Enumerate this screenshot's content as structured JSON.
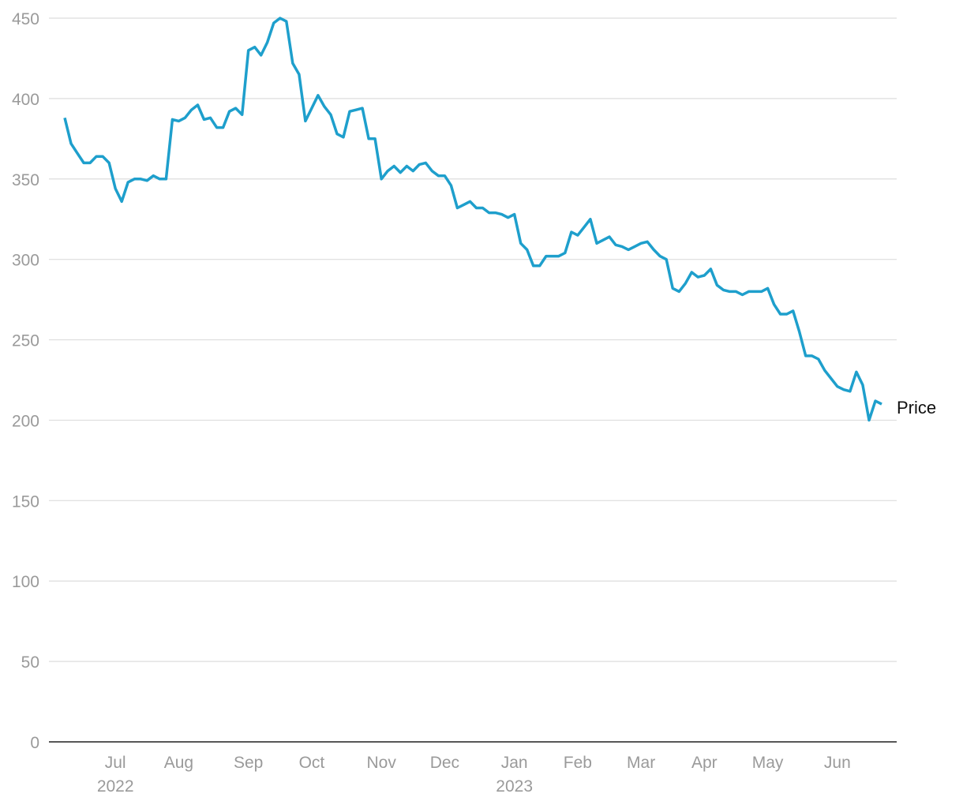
{
  "chart_data": {
    "type": "line",
    "categories": [
      null,
      null,
      null,
      null,
      null,
      null,
      null,
      null,
      "Jul\n2022",
      null,
      null,
      null,
      null,
      null,
      null,
      null,
      null,
      null,
      "Aug",
      null,
      null,
      null,
      null,
      null,
      null,
      null,
      null,
      null,
      null,
      "Sep",
      null,
      null,
      null,
      null,
      null,
      null,
      null,
      null,
      null,
      "Oct",
      null,
      null,
      null,
      null,
      null,
      null,
      null,
      null,
      null,
      null,
      "Nov",
      null,
      null,
      null,
      null,
      null,
      null,
      null,
      null,
      null,
      "Dec",
      null,
      null,
      null,
      null,
      null,
      null,
      null,
      null,
      null,
      null,
      "Jan\n2023",
      null,
      null,
      null,
      null,
      null,
      null,
      null,
      null,
      null,
      "Feb",
      null,
      null,
      null,
      null,
      null,
      null,
      null,
      null,
      null,
      "Mar",
      null,
      null,
      null,
      null,
      null,
      null,
      null,
      null,
      null,
      "Apr",
      null,
      null,
      null,
      null,
      null,
      null,
      null,
      null,
      null,
      "May",
      null,
      null,
      null,
      null,
      null,
      null,
      null,
      null,
      null,
      null,
      "Jun",
      null,
      null,
      null,
      null,
      null,
      null,
      null
    ],
    "series": [
      {
        "name": "Price",
        "color": "#1e9fcc",
        "values": [
          388,
          372,
          366,
          360,
          360,
          364,
          364,
          360,
          344,
          336,
          348,
          350,
          350,
          349,
          352,
          350,
          350,
          387,
          386,
          388,
          393,
          396,
          387,
          388,
          382,
          382,
          392,
          394,
          390,
          430,
          432,
          427,
          435,
          447,
          450,
          448,
          422,
          415,
          386,
          394,
          402,
          395,
          390,
          378,
          376,
          392,
          393,
          394,
          375,
          375,
          350,
          355,
          358,
          354,
          358,
          355,
          359,
          360,
          355,
          352,
          352,
          346,
          332,
          334,
          336,
          332,
          332,
          329,
          329,
          328,
          326,
          328,
          310,
          306,
          296,
          296,
          302,
          302,
          302,
          304,
          317,
          315,
          320,
          325,
          310,
          312,
          314,
          309,
          308,
          306,
          308,
          310,
          311,
          306,
          302,
          300,
          282,
          280,
          285,
          292,
          289,
          290,
          294,
          284,
          281,
          280,
          280,
          278,
          280,
          280,
          280,
          282,
          272,
          266,
          266,
          268,
          255,
          240,
          240,
          238,
          231,
          226,
          221,
          219,
          218,
          230,
          222,
          200,
          212,
          210
        ]
      }
    ],
    "ylim": [
      0,
      450
    ],
    "yticks": [
      0,
      50,
      100,
      150,
      200,
      250,
      300,
      350,
      400,
      450
    ],
    "grid": true
  }
}
